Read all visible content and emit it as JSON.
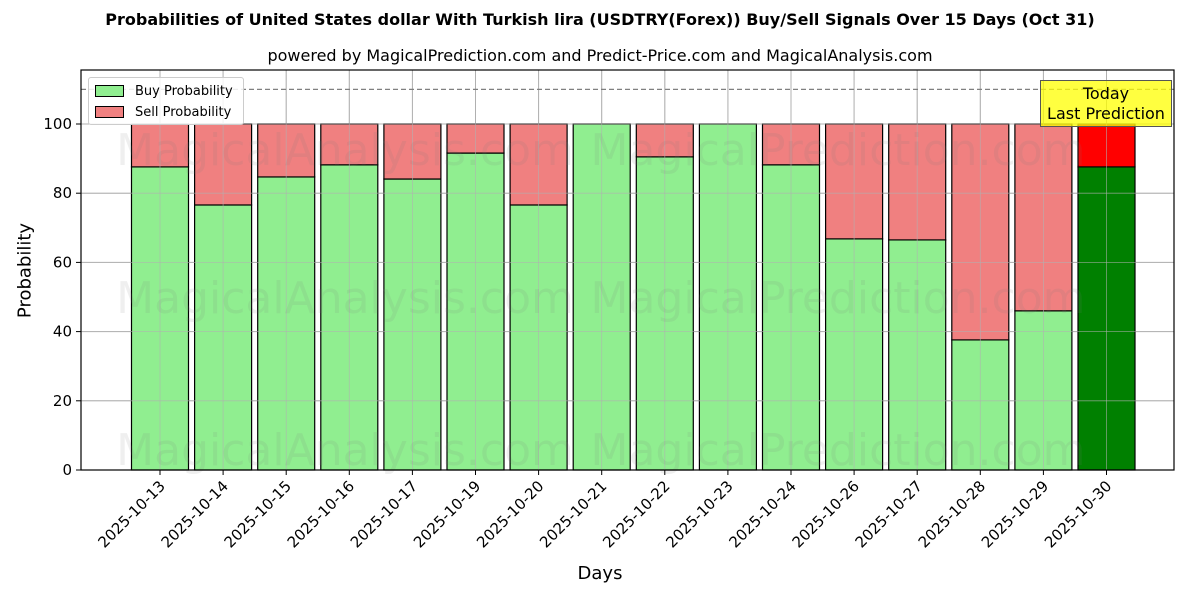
{
  "header": {
    "title": "Probabilities of United States dollar With Turkish lira (USDTRY(Forex)) Buy/Sell Signals Over 15 Days (Oct 31)",
    "subtitle": "powered by MagicalPrediction.com and Predict-Price.com and MagicalAnalysis.com"
  },
  "legend": {
    "buy_label": "Buy Probability",
    "sell_label": "Sell Probability"
  },
  "annotation": {
    "line1": "Today",
    "line2": "Last Prediction"
  },
  "watermarks": [
    "MagicalAnalysis.com",
    "MagicalPrediction.com"
  ],
  "colors": {
    "buy": "#90ee90",
    "sell": "#f08080",
    "today_buy": "#008000",
    "today_sell": "#ff0000",
    "annotation_bg": "#ffff00"
  },
  "chart_data": {
    "type": "bar",
    "stacked": true,
    "title": "Probabilities of United States dollar With Turkish lira (USDTRY(Forex)) Buy/Sell Signals Over 15 Days (Oct 31)",
    "subtitle": "powered by MagicalPrediction.com and Predict-Price.com and MagicalAnalysis.com",
    "xlabel": "Days",
    "ylabel": "Probability",
    "ylim": [
      0,
      115
    ],
    "yticks": [
      0,
      20,
      40,
      60,
      80,
      100
    ],
    "grid": true,
    "legend_position": "upper left",
    "reference_line": {
      "y": 110,
      "style": "dashed"
    },
    "categories": [
      "2025-10-13",
      "2025-10-14",
      "2025-10-15",
      "2025-10-16",
      "2025-10-17",
      "2025-10-19",
      "2025-10-20",
      "2025-10-21",
      "2025-10-22",
      "2025-10-23",
      "2025-10-24",
      "2025-10-26",
      "2025-10-27",
      "2025-10-28",
      "2025-10-29",
      "2025-10-30"
    ],
    "series": [
      {
        "name": "Buy Probability",
        "values": [
          87.6,
          76.6,
          84.7,
          88.2,
          84.1,
          91.6,
          76.6,
          100.0,
          90.5,
          100.0,
          88.2,
          66.8,
          66.5,
          37.6,
          46.0,
          87.6
        ]
      },
      {
        "name": "Sell Probability",
        "values": [
          12.4,
          23.4,
          15.3,
          11.8,
          15.9,
          8.4,
          23.4,
          0.0,
          9.5,
          0.0,
          11.8,
          33.2,
          33.5,
          62.4,
          54.0,
          12.4
        ]
      }
    ],
    "highlight": {
      "category": "2025-10-30",
      "label": "Today\nLast Prediction"
    }
  }
}
